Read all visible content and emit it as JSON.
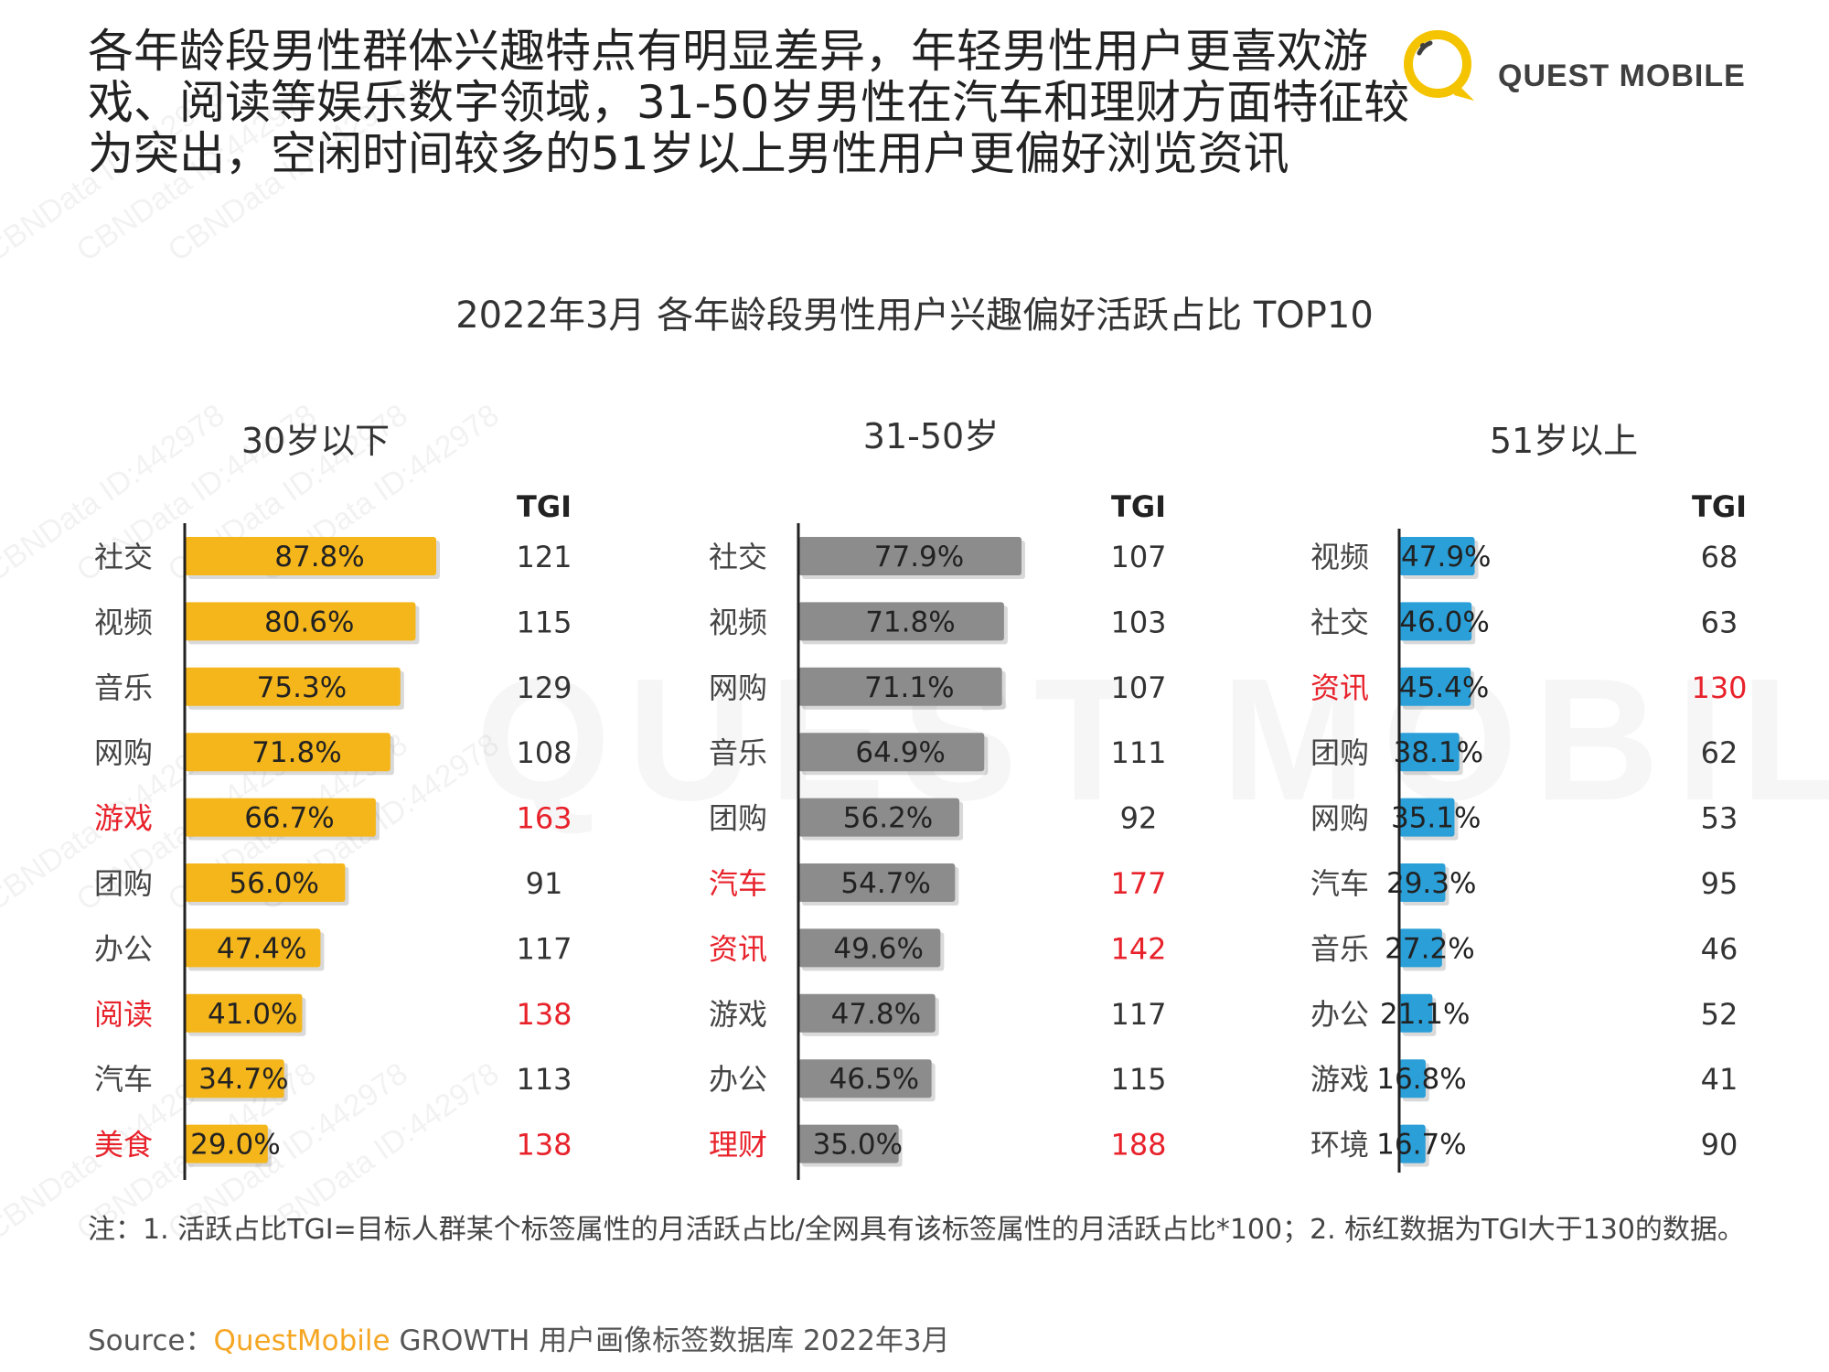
{
  "headline": "各年龄段男性群体兴趣特点有明显差异，年轻男性用户更喜欢游戏、阅读等娱乐数字领域，31-50岁男性在汽车和理财方面特征较为突出，空闲时间较多的51岁以上男性用户更偏好浏览资讯",
  "logo": {
    "text": "QUEST MOBILE",
    "watermark_text": "QUEST MOBILE",
    "ring_color": "#F5C400",
    "icon": "speech-bubble-ring-logo"
  },
  "watermark_lines": [
    "CBNData ID:442978"
  ],
  "chart_title": "2022年3月 各年龄段男性用户兴趣偏好活跃占比 TOP10",
  "chart_data": [
    {
      "type": "bar",
      "orientation": "horizontal",
      "title": "30岁以下",
      "tgi_label": "TGI",
      "color": "#F5B61B",
      "categories": [
        "社交",
        "视频",
        "音乐",
        "网购",
        "游戏",
        "团购",
        "办公",
        "阅读",
        "汽车",
        "美食"
      ],
      "values": [
        87.8,
        80.6,
        75.3,
        71.8,
        66.7,
        56.0,
        47.4,
        41.0,
        34.7,
        29.0
      ],
      "value_labels": [
        "87.8%",
        "80.6%",
        "75.3%",
        "71.8%",
        "66.7%",
        "56.0%",
        "47.4%",
        "41.0%",
        "34.7%",
        "29.0%"
      ],
      "tgi": [
        121,
        115,
        129,
        108,
        163,
        91,
        117,
        138,
        113,
        138
      ],
      "highlight": [
        false,
        false,
        false,
        false,
        true,
        false,
        false,
        true,
        false,
        true
      ]
    },
    {
      "type": "bar",
      "orientation": "horizontal",
      "title": "31-50岁",
      "tgi_label": "TGI",
      "color": "#8C8C8C",
      "categories": [
        "社交",
        "视频",
        "网购",
        "音乐",
        "团购",
        "汽车",
        "资讯",
        "游戏",
        "办公",
        "理财"
      ],
      "values": [
        77.9,
        71.8,
        71.1,
        64.9,
        56.2,
        54.7,
        49.6,
        47.8,
        46.5,
        35.0
      ],
      "value_labels": [
        "77.9%",
        "71.8%",
        "71.1%",
        "64.9%",
        "56.2%",
        "54.7%",
        "49.6%",
        "47.8%",
        "46.5%",
        "35.0%"
      ],
      "tgi": [
        107,
        103,
        107,
        111,
        92,
        177,
        142,
        117,
        115,
        188
      ],
      "highlight": [
        false,
        false,
        false,
        false,
        false,
        true,
        true,
        false,
        false,
        true
      ]
    },
    {
      "type": "bar",
      "orientation": "horizontal",
      "title": "51岁以上",
      "tgi_label": "TGI",
      "color": "#2A9FD8",
      "categories": [
        "视频",
        "社交",
        "资讯",
        "团购",
        "网购",
        "汽车",
        "音乐",
        "办公",
        "游戏",
        "环境"
      ],
      "values": [
        47.9,
        46.0,
        45.4,
        38.1,
        35.1,
        29.3,
        27.2,
        21.1,
        16.8,
        16.7
      ],
      "value_labels": [
        "47.9%",
        "46.0%",
        "45.4%",
        "38.1%",
        "35.1%",
        "29.3%",
        "27.2%",
        "21.1%",
        "16.8%",
        "16.7%"
      ],
      "tgi": [
        68,
        63,
        130,
        62,
        53,
        95,
        46,
        52,
        41,
        90
      ],
      "highlight": [
        false,
        false,
        true,
        false,
        false,
        false,
        false,
        false,
        false,
        false
      ]
    }
  ],
  "colors": {
    "highlight": "#E8222B",
    "text": "#333333"
  },
  "footnote": "注：1. 活跃占比TGI=目标人群某个标签属性的月活跃占比/全网具有该标签属性的月活跃占比*100；2. 标红数据为TGI大于130的数据。",
  "source": {
    "prefix": "Source：",
    "brand": "QuestMobile",
    "rest": " GROWTH 用户画像标签数据库 2022年3月"
  }
}
